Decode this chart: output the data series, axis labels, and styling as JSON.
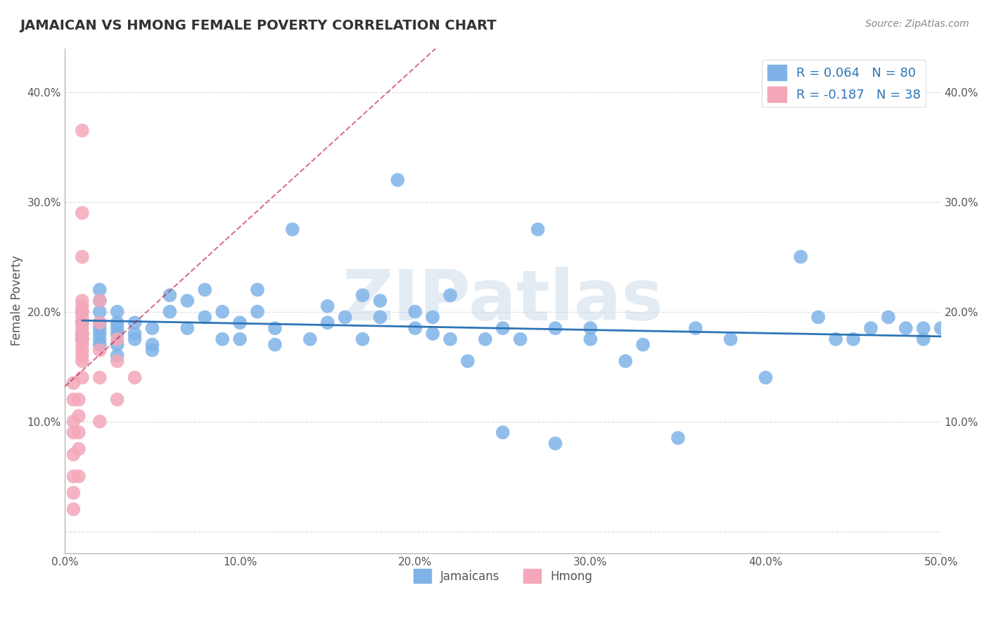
{
  "title": "JAMAICAN VS HMONG FEMALE POVERTY CORRELATION CHART",
  "source_text": "Source: ZipAtlas.com",
  "xlabel_bottom": "",
  "ylabel": "Female Poverty",
  "xlim": [
    0.0,
    0.5
  ],
  "ylim": [
    -0.02,
    0.44
  ],
  "xticks": [
    0.0,
    0.1,
    0.2,
    0.3,
    0.4,
    0.5
  ],
  "xticklabels": [
    "0.0%",
    "10.0%",
    "20.0%",
    "30.0%",
    "40.0%",
    "50.0%"
  ],
  "yticks": [
    0.0,
    0.1,
    0.2,
    0.3,
    0.4
  ],
  "yticklabels": [
    "",
    "10.0%",
    "20.0%",
    "30.0%",
    "40.0%"
  ],
  "right_ytick_labels": [
    "",
    "10.0%",
    "20.0%",
    "30.0%",
    "40.0%"
  ],
  "jamaican_R": 0.064,
  "jamaican_N": 80,
  "hmong_R": -0.187,
  "hmong_N": 38,
  "blue_color": "#7FB3E8",
  "pink_color": "#F4A7B9",
  "blue_line_color": "#2E75B6",
  "pink_line_color": "#C0143C",
  "legend_R_color": "#2E75B6",
  "watermark_color": "#C8D8E8",
  "background_color": "#FFFFFF",
  "grid_color": "#CCCCCC",
  "title_color": "#333333",
  "jamaican_x": [
    0.01,
    0.01,
    0.01,
    0.01,
    0.02,
    0.02,
    0.02,
    0.02,
    0.02,
    0.02,
    0.02,
    0.02,
    0.03,
    0.03,
    0.03,
    0.03,
    0.03,
    0.03,
    0.04,
    0.04,
    0.04,
    0.05,
    0.05,
    0.05,
    0.06,
    0.06,
    0.07,
    0.07,
    0.08,
    0.08,
    0.09,
    0.09,
    0.1,
    0.1,
    0.11,
    0.11,
    0.12,
    0.12,
    0.13,
    0.14,
    0.15,
    0.15,
    0.16,
    0.17,
    0.17,
    0.18,
    0.18,
    0.19,
    0.2,
    0.2,
    0.21,
    0.21,
    0.22,
    0.22,
    0.23,
    0.24,
    0.25,
    0.25,
    0.26,
    0.27,
    0.28,
    0.28,
    0.3,
    0.3,
    0.32,
    0.33,
    0.35,
    0.36,
    0.38,
    0.4,
    0.42,
    0.43,
    0.44,
    0.45,
    0.46,
    0.47,
    0.48,
    0.49,
    0.49,
    0.5
  ],
  "jamaican_y": [
    0.175,
    0.18,
    0.19,
    0.2,
    0.17,
    0.175,
    0.18,
    0.185,
    0.19,
    0.2,
    0.21,
    0.22,
    0.16,
    0.17,
    0.18,
    0.185,
    0.19,
    0.2,
    0.175,
    0.18,
    0.19,
    0.165,
    0.17,
    0.185,
    0.2,
    0.215,
    0.185,
    0.21,
    0.195,
    0.22,
    0.175,
    0.2,
    0.175,
    0.19,
    0.2,
    0.22,
    0.17,
    0.185,
    0.275,
    0.175,
    0.19,
    0.205,
    0.195,
    0.175,
    0.215,
    0.195,
    0.21,
    0.32,
    0.185,
    0.2,
    0.18,
    0.195,
    0.175,
    0.215,
    0.155,
    0.175,
    0.185,
    0.09,
    0.175,
    0.275,
    0.185,
    0.08,
    0.175,
    0.185,
    0.155,
    0.17,
    0.085,
    0.185,
    0.175,
    0.14,
    0.25,
    0.195,
    0.175,
    0.175,
    0.185,
    0.195,
    0.185,
    0.175,
    0.185,
    0.185
  ],
  "hmong_x": [
    0.005,
    0.005,
    0.005,
    0.005,
    0.005,
    0.005,
    0.005,
    0.005,
    0.008,
    0.008,
    0.008,
    0.008,
    0.008,
    0.01,
    0.01,
    0.01,
    0.01,
    0.01,
    0.01,
    0.01,
    0.01,
    0.01,
    0.01,
    0.01,
    0.01,
    0.01,
    0.01,
    0.01,
    0.01,
    0.02,
    0.02,
    0.02,
    0.02,
    0.02,
    0.03,
    0.03,
    0.03,
    0.04
  ],
  "hmong_y": [
    0.02,
    0.035,
    0.05,
    0.07,
    0.09,
    0.1,
    0.12,
    0.135,
    0.05,
    0.075,
    0.09,
    0.105,
    0.12,
    0.14,
    0.155,
    0.16,
    0.165,
    0.17,
    0.175,
    0.18,
    0.185,
    0.19,
    0.195,
    0.2,
    0.205,
    0.21,
    0.25,
    0.29,
    0.365,
    0.1,
    0.14,
    0.165,
    0.19,
    0.21,
    0.12,
    0.155,
    0.175,
    0.14
  ]
}
